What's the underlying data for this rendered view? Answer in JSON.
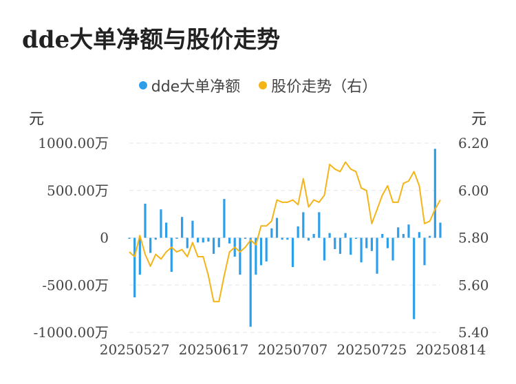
{
  "chart_data": {
    "type": "bar+line",
    "title": "dde大单净额与股价走势",
    "legend": [
      {
        "name": "dde大单净额",
        "color": "#2f9ee8"
      },
      {
        "name": "股价走势（右）",
        "color": "#f4b416"
      }
    ],
    "left_unit": "元",
    "right_unit": "元",
    "left_axis": {
      "min": -1000,
      "max": 1000,
      "ticks": [
        {
          "value": 1000,
          "label": "1000.00万"
        },
        {
          "value": 500,
          "label": "500.00万"
        },
        {
          "value": 0,
          "label": "0"
        },
        {
          "value": -500,
          "label": "-500.00万"
        },
        {
          "value": -1000,
          "label": "-1000.00万"
        }
      ]
    },
    "right_axis": {
      "min": 5.4,
      "max": 6.2,
      "ticks": [
        {
          "value": 6.2,
          "label": "6.20"
        },
        {
          "value": 6.0,
          "label": "6.00"
        },
        {
          "value": 5.8,
          "label": "5.80"
        },
        {
          "value": 5.6,
          "label": "5.60"
        },
        {
          "value": 5.4,
          "label": "5.40"
        }
      ]
    },
    "x_tick_labels": [
      {
        "index": 1,
        "label": "20250527"
      },
      {
        "index": 16,
        "label": "20250617"
      },
      {
        "index": 31,
        "label": "20250707"
      },
      {
        "index": 46,
        "label": "20250725"
      },
      {
        "index": 61,
        "label": "20250814"
      }
    ],
    "grid": "horizontal dashed",
    "series": [
      {
        "name": "dde大单净额",
        "type": "bar",
        "color": "#2f9ee8",
        "values": [
          0,
          -630,
          -390,
          360,
          -160,
          -20,
          300,
          160,
          -360,
          0,
          220,
          -110,
          180,
          -50,
          -50,
          -40,
          -170,
          -100,
          410,
          -60,
          -200,
          -390,
          0,
          -940,
          -390,
          -290,
          -250,
          100,
          210,
          -20,
          -20,
          -310,
          120,
          270,
          -30,
          40,
          270,
          -240,
          50,
          -120,
          -170,
          50,
          -180,
          -10,
          -260,
          -110,
          -140,
          -380,
          40,
          -110,
          -240,
          110,
          40,
          140,
          -860,
          60,
          -290,
          20,
          940,
          160
        ]
      },
      {
        "name": "股价走势（右）",
        "type": "line",
        "color": "#f4b416",
        "values": [
          5.74,
          5.72,
          5.81,
          5.73,
          5.68,
          5.73,
          5.71,
          5.74,
          5.76,
          5.74,
          5.75,
          5.72,
          5.78,
          5.72,
          5.72,
          5.64,
          5.53,
          5.53,
          5.64,
          5.74,
          5.76,
          5.74,
          5.76,
          5.79,
          5.77,
          5.85,
          5.85,
          5.87,
          5.96,
          5.95,
          5.95,
          5.96,
          5.94,
          6.05,
          5.93,
          5.96,
          5.95,
          5.98,
          6.11,
          6.09,
          6.08,
          6.12,
          6.09,
          6.08,
          6.01,
          6.0,
          5.86,
          5.92,
          5.98,
          6.02,
          5.95,
          5.95,
          6.03,
          6.04,
          6.08,
          6.02,
          5.86,
          5.87,
          5.92,
          5.96
        ]
      }
    ]
  }
}
